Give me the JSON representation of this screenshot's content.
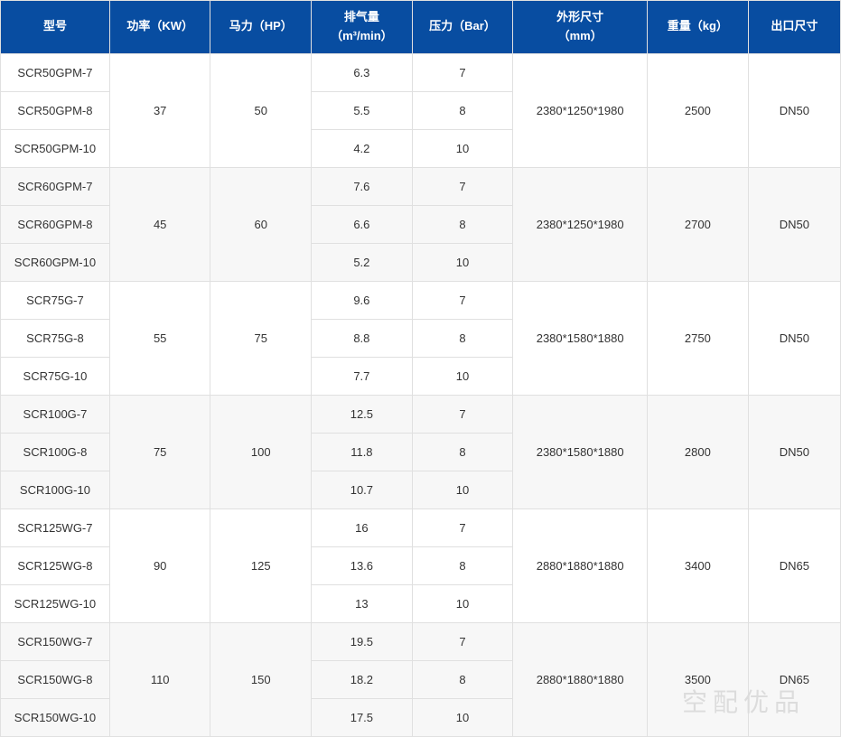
{
  "headers": {
    "model": "型号",
    "power": "功率（KW）",
    "hp": "马力（HP）",
    "displacement": "排气量<br>（m³/min）",
    "pressure": "压力（Bar）",
    "dimensions": "外形尺寸<br>（mm）",
    "weight": "重量（kg）",
    "outlet": "出口尺寸"
  },
  "groups": [
    {
      "shade": false,
      "power": "37",
      "hp": "50",
      "dimensions": "2380*1250*1980",
      "weight": "2500",
      "outlet": "DN50",
      "rows": [
        {
          "model": "SCR50GPM-7",
          "displacement": "6.3",
          "pressure": "7"
        },
        {
          "model": "SCR50GPM-8",
          "displacement": "5.5",
          "pressure": "8"
        },
        {
          "model": "SCR50GPM-10",
          "displacement": "4.2",
          "pressure": "10"
        }
      ]
    },
    {
      "shade": true,
      "power": "45",
      "hp": "60",
      "dimensions": "2380*1250*1980",
      "weight": "2700",
      "outlet": "DN50",
      "rows": [
        {
          "model": "SCR60GPM-7",
          "displacement": "7.6",
          "pressure": "7"
        },
        {
          "model": "SCR60GPM-8",
          "displacement": "6.6",
          "pressure": "8"
        },
        {
          "model": "SCR60GPM-10",
          "displacement": "5.2",
          "pressure": "10"
        }
      ]
    },
    {
      "shade": false,
      "power": "55",
      "hp": "75",
      "dimensions": "2380*1580*1880",
      "weight": "2750",
      "outlet": "DN50",
      "rows": [
        {
          "model": "SCR75G-7",
          "displacement": "9.6",
          "pressure": "7"
        },
        {
          "model": "SCR75G-8",
          "displacement": "8.8",
          "pressure": "8"
        },
        {
          "model": "SCR75G-10",
          "displacement": "7.7",
          "pressure": "10"
        }
      ]
    },
    {
      "shade": true,
      "power": "75",
      "hp": "100",
      "dimensions": "2380*1580*1880",
      "weight": "2800",
      "outlet": "DN50",
      "rows": [
        {
          "model": "SCR100G-7",
          "displacement": "12.5",
          "pressure": "7"
        },
        {
          "model": "SCR100G-8",
          "displacement": "11.8",
          "pressure": "8"
        },
        {
          "model": "SCR100G-10",
          "displacement": "10.7",
          "pressure": "10"
        }
      ]
    },
    {
      "shade": false,
      "power": "90",
      "hp": "125",
      "dimensions": "2880*1880*1880",
      "weight": "3400",
      "outlet": "DN65",
      "rows": [
        {
          "model": "SCR125WG-7",
          "displacement": "16",
          "pressure": "7"
        },
        {
          "model": "SCR125WG-8",
          "displacement": "13.6",
          "pressure": "8"
        },
        {
          "model": "SCR125WG-10",
          "displacement": "13",
          "pressure": "10"
        }
      ]
    },
    {
      "shade": true,
      "power": "110",
      "hp": "150",
      "dimensions": "2880*1880*1880",
      "weight": "3500",
      "outlet": "DN65",
      "rows": [
        {
          "model": "SCR150WG-7",
          "displacement": "19.5",
          "pressure": "7"
        },
        {
          "model": "SCR150WG-8",
          "displacement": "18.2",
          "pressure": "8"
        },
        {
          "model": "SCR150WG-10",
          "displacement": "17.5",
          "pressure": "10"
        }
      ]
    }
  ],
  "watermark": "空配优品",
  "col_widths": [
    "13%",
    "12%",
    "12%",
    "12%",
    "12%",
    "16%",
    "12%",
    "11%"
  ],
  "colors": {
    "header_bg": "#084da1",
    "header_text": "#ffffff",
    "cell_text": "#333333",
    "border": "#e0e0e0",
    "row_bg": "#ffffff",
    "row_shade_bg": "#f7f7f7",
    "watermark": "#dcdcdc"
  },
  "fonts": {
    "header_size_pt": 10,
    "cell_size_pt": 10
  }
}
